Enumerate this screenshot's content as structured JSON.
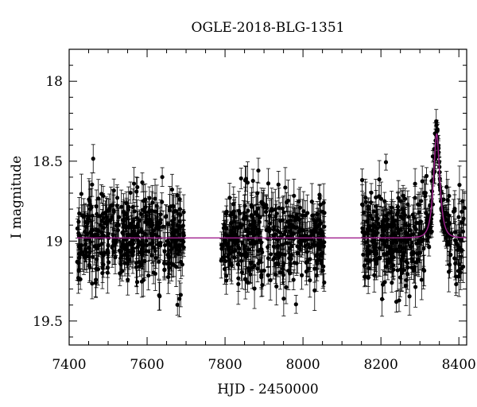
{
  "chart_data": {
    "type": "scatter",
    "title": "OGLE-2018-BLG-1351",
    "xlabel": "HJD - 2450000",
    "ylabel": "I magnitude",
    "xlim": [
      7400,
      8420
    ],
    "ylim": [
      19.65,
      17.8
    ],
    "y_inverted": true,
    "x_ticks": [
      "7400",
      "7600",
      "7800",
      "8000",
      "8200",
      "8400"
    ],
    "y_ticks": [
      "18",
      "18.5",
      "19",
      "19.5"
    ],
    "grid": false,
    "colors": {
      "points": "#000000",
      "error_bars": "#000000",
      "model": "#a0208f"
    },
    "observing_seasons": [
      {
        "x_start": 7420,
        "x_end": 7695,
        "approx_points": 400
      },
      {
        "x_start": 7790,
        "x_end": 8055,
        "approx_points": 380
      },
      {
        "x_start": 8150,
        "x_end": 8415,
        "approx_points": 420
      }
    ],
    "series": [
      {
        "type": "scatter_errorbars",
        "baseline_mag": 18.98,
        "typical_scatter_mag": 0.14,
        "typical_error_mag": 0.09
      },
      {
        "type": "line",
        "model": "microlensing",
        "baseline_mag": 18.98,
        "t0": 8343,
        "peak_mag": 18.33,
        "tE_days": 12,
        "x_range": [
          7420,
          8420
        ]
      }
    ]
  }
}
